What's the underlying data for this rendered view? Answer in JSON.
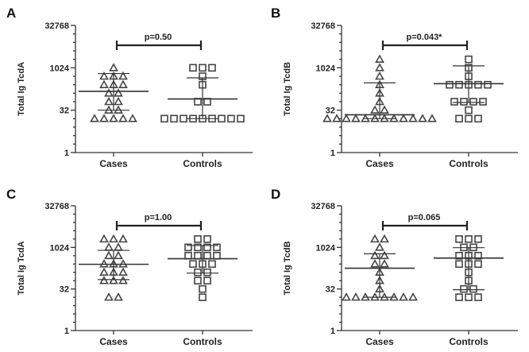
{
  "chart_data": [
    {
      "type": "scatter",
      "panel": "A",
      "ylabel": "Total Ig TcdA",
      "yscale": "log2",
      "ylim": [
        1,
        32768
      ],
      "yticks": [
        "32768",
        "1024",
        "32",
        "1"
      ],
      "categories": [
        "Cases",
        "Controls"
      ],
      "annotation": "p=0.50",
      "series": [
        {
          "name": "Cases",
          "marker": "triangle",
          "values": [
            16,
            16,
            16,
            16,
            16,
            32,
            32,
            64,
            64,
            128,
            128,
            256,
            256,
            256,
            512,
            512,
            512,
            1024
          ],
          "mean": 150,
          "error": [
            32,
            640
          ]
        },
        {
          "name": "Controls",
          "marker": "square",
          "values": [
            16,
            16,
            16,
            16,
            16,
            16,
            16,
            16,
            16,
            64,
            64,
            256,
            512,
            1024,
            1024,
            1024
          ],
          "mean": 80,
          "error": [
            16,
            450
          ]
        }
      ]
    },
    {
      "type": "scatter",
      "panel": "B",
      "ylabel": "Total Ig TcdB",
      "yscale": "log2",
      "ylim": [
        1,
        32768
      ],
      "yticks": [
        "32768",
        "1024",
        "32",
        "1"
      ],
      "categories": [
        "Cases",
        "Controls"
      ],
      "annotation": "p=0.043*",
      "series": [
        {
          "name": "Cases",
          "marker": "triangle",
          "values": [
            16,
            16,
            16,
            16,
            16,
            16,
            16,
            16,
            16,
            16,
            16,
            16,
            32,
            32,
            64,
            128,
            256,
            512,
            1024,
            2048
          ],
          "mean": 22,
          "error": [
            16,
            300
          ]
        },
        {
          "name": "Controls",
          "marker": "square",
          "values": [
            16,
            16,
            16,
            32,
            64,
            64,
            64,
            64,
            256,
            256,
            256,
            256,
            256,
            512,
            1024,
            2048
          ],
          "mean": 280,
          "error": [
            60,
            1200
          ]
        }
      ]
    },
    {
      "type": "scatter",
      "panel": "C",
      "ylabel": "Total Ig TcdA",
      "yscale": "log2",
      "ylim": [
        1,
        32768
      ],
      "yticks": [
        "32768",
        "1024",
        "32",
        "1"
      ],
      "categories": [
        "Cases",
        "Controls"
      ],
      "annotation": "p=1.00",
      "series": [
        {
          "name": "Cases",
          "marker": "triangle",
          "values": [
            16,
            16,
            64,
            64,
            64,
            128,
            128,
            128,
            256,
            256,
            256,
            512,
            512,
            1024,
            1024,
            2048,
            2048,
            2048
          ],
          "mean": 250,
          "error": [
            70,
            800
          ]
        },
        {
          "name": "Controls",
          "marker": "square",
          "values": [
            16,
            32,
            64,
            64,
            128,
            128,
            256,
            256,
            256,
            512,
            512,
            512,
            512,
            1024,
            1024,
            1024,
            1024,
            2048,
            2048
          ],
          "mean": 400,
          "error": [
            120,
            1200
          ]
        }
      ]
    },
    {
      "type": "scatter",
      "panel": "D",
      "ylabel": "Total Ig TcdB",
      "yscale": "log2",
      "ylim": [
        1,
        32768
      ],
      "yticks": [
        "32768",
        "1024",
        "32",
        "1"
      ],
      "categories": [
        "Cases",
        "Controls"
      ],
      "annotation": "p=0.065",
      "series": [
        {
          "name": "Cases",
          "marker": "triangle",
          "values": [
            16,
            16,
            16,
            16,
            16,
            16,
            16,
            16,
            32,
            64,
            128,
            256,
            256,
            512,
            512,
            1024,
            2048,
            2048
          ],
          "mean": 180,
          "error": [
            16,
            600
          ]
        },
        {
          "name": "Controls",
          "marker": "square",
          "values": [
            16,
            16,
            16,
            32,
            32,
            64,
            128,
            256,
            256,
            256,
            512,
            512,
            512,
            1024,
            1024,
            2048,
            2048,
            2048
          ],
          "mean": 420,
          "error": [
            30,
            1000
          ]
        }
      ]
    }
  ]
}
